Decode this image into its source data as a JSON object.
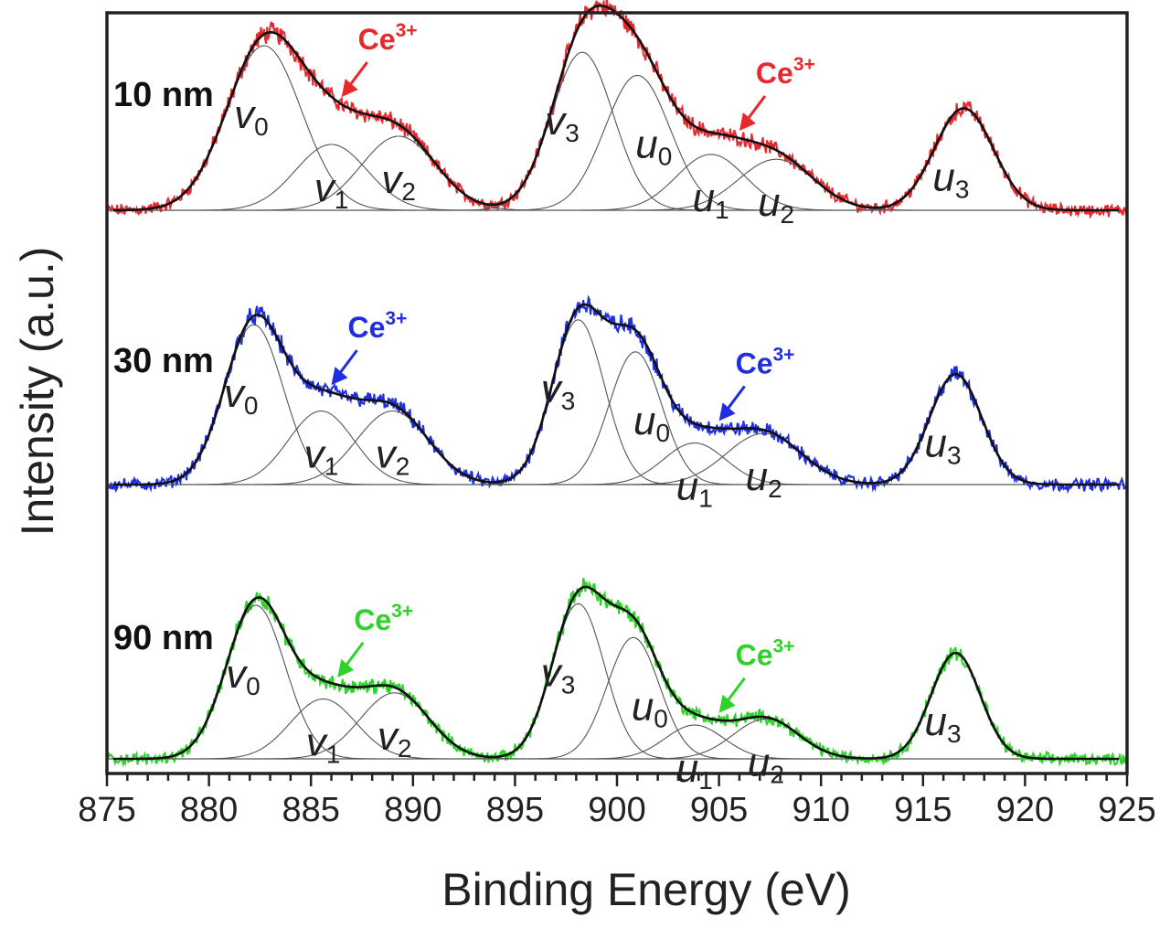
{
  "colors": {
    "frame": "#222222",
    "fit": "#111111",
    "component": "#555555",
    "10 nm": "#e8282c",
    "30 nm": "#1f2ee0",
    "90 nm": "#2ed22a"
  },
  "chart_data": {
    "type": "line",
    "title": "",
    "xlabel": "Binding Energy (eV)",
    "ylabel": "Intensity (a.u.)",
    "xlim": [
      875,
      925
    ],
    "xticks": [
      875,
      880,
      885,
      890,
      895,
      900,
      905,
      910,
      915,
      920,
      925
    ],
    "minor_tick_step": 1,
    "yticks": [],
    "grid": false,
    "legend": "none",
    "annotation_text": "Ce",
    "annotation_sup": "3+",
    "peak_names": [
      "v0",
      "v1",
      "v2",
      "v3",
      "u0",
      "u1",
      "u2",
      "u3"
    ],
    "series": [
      {
        "name": "10 nm",
        "peaks": [
          {
            "label": "v",
            "sub": "0",
            "center": 882.7,
            "height": 1.0,
            "width": 2.3
          },
          {
            "label": "v",
            "sub": "1",
            "center": 886.0,
            "height": 0.4,
            "width": 2.2
          },
          {
            "label": "v",
            "sub": "2",
            "center": 889.3,
            "height": 0.45,
            "width": 2.3
          },
          {
            "label": "v",
            "sub": "3",
            "center": 898.3,
            "height": 0.96,
            "width": 1.9
          },
          {
            "label": "u",
            "sub": "0",
            "center": 901.0,
            "height": 0.82,
            "width": 2.0
          },
          {
            "label": "u",
            "sub": "1",
            "center": 904.6,
            "height": 0.34,
            "width": 2.1
          },
          {
            "label": "u",
            "sub": "2",
            "center": 907.8,
            "height": 0.31,
            "width": 2.3
          },
          {
            "label": "u",
            "sub": "3",
            "center": 917.0,
            "height": 0.62,
            "width": 1.8
          }
        ],
        "ce3_arrows": [
          886.5,
          906.0
        ]
      },
      {
        "name": "30 nm",
        "peaks": [
          {
            "label": "v",
            "sub": "0",
            "center": 882.2,
            "height": 1.0,
            "width": 1.8
          },
          {
            "label": "v",
            "sub": "1",
            "center": 885.5,
            "height": 0.46,
            "width": 2.0
          },
          {
            "label": "v",
            "sub": "2",
            "center": 889.0,
            "height": 0.46,
            "width": 2.2
          },
          {
            "label": "v",
            "sub": "3",
            "center": 898.1,
            "height": 1.03,
            "width": 1.6
          },
          {
            "label": "u",
            "sub": "0",
            "center": 900.9,
            "height": 0.83,
            "width": 1.6
          },
          {
            "label": "u",
            "sub": "1",
            "center": 903.8,
            "height": 0.26,
            "width": 1.9
          },
          {
            "label": "u",
            "sub": "2",
            "center": 907.2,
            "height": 0.32,
            "width": 2.3
          },
          {
            "label": "u",
            "sub": "3",
            "center": 916.6,
            "height": 0.69,
            "width": 1.6
          }
        ],
        "ce3_arrows": [
          886.0,
          905.0
        ]
      },
      {
        "name": "90 nm",
        "peaks": [
          {
            "label": "v",
            "sub": "0",
            "center": 882.3,
            "height": 1.0,
            "width": 1.8
          },
          {
            "label": "v",
            "sub": "1",
            "center": 885.6,
            "height": 0.39,
            "width": 2.0
          },
          {
            "label": "v",
            "sub": "2",
            "center": 889.1,
            "height": 0.43,
            "width": 2.1
          },
          {
            "label": "v",
            "sub": "3",
            "center": 898.1,
            "height": 1.01,
            "width": 1.6
          },
          {
            "label": "u",
            "sub": "0",
            "center": 900.8,
            "height": 0.79,
            "width": 1.6
          },
          {
            "label": "u",
            "sub": "1",
            "center": 903.8,
            "height": 0.22,
            "width": 1.8
          },
          {
            "label": "u",
            "sub": "2",
            "center": 907.3,
            "height": 0.26,
            "width": 2.0
          },
          {
            "label": "u",
            "sub": "3",
            "center": 916.6,
            "height": 0.69,
            "width": 1.5
          }
        ],
        "ce3_arrows": [
          886.3,
          905.0
        ]
      }
    ]
  }
}
